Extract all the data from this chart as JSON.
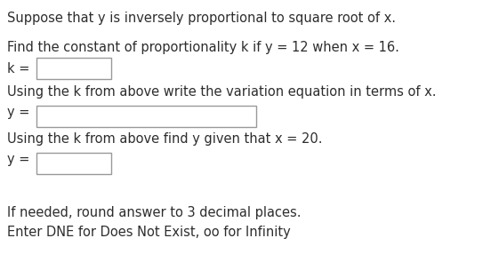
{
  "bg_color": "#ffffff",
  "text_color": "#2d2d2d",
  "line1": "Suppose that y is inversely proportional to square root of x.",
  "line2": "Find the constant of proportionality k if y = 12 when x = 16.",
  "label_k": "k =",
  "line3": "Using the k from above write the variation equation in terms of x.",
  "label_y1": "y =",
  "line4": "Using the k from above find y given that x = 20.",
  "label_y2": "y =",
  "line5": "If needed, round answer to 3 decimal places.",
  "line6": "Enter DNE for Does Not Exist, oo for Infinity",
  "font_size": 10.5,
  "box_color": "#ffffff",
  "box_edge_color": "#999999"
}
